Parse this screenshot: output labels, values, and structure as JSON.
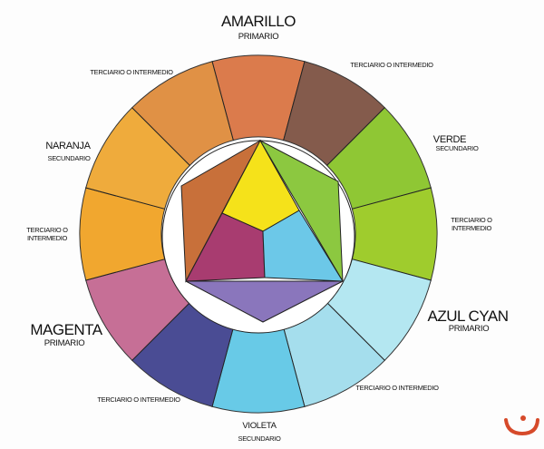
{
  "labels": {
    "amarillo": {
      "name": "AMARILLO",
      "type": "PRIMARIO"
    },
    "verde": {
      "name": "VERDE",
      "type": "SECUNDARIO"
    },
    "azul_cyan": {
      "name": "AZUL CYAN",
      "type": "PRIMARIO"
    },
    "violeta": {
      "name": "VIOLETA",
      "type": "SECUNDARIO"
    },
    "magenta": {
      "name": "MAGENTA",
      "type": "PRIMARIO"
    },
    "naranja": {
      "name": "NARANJA",
      "type": "SECUNDARIO"
    },
    "terciario_top_left": "TERCIARIO O INTERMEDIO",
    "terciario_top_right": "TERCIARIO O INTERMEDIO",
    "terciario_right_line1": "TERCIARIO O",
    "terciario_right_line2": "INTERMEDIO",
    "terciario_bottom_right": "TERCIARIO O INTERMEDIO",
    "terciario_bottom_left": "TERCIARIO O INTERMEDIO",
    "terciario_left_line1": "TERCIARIO O",
    "terciario_left_line2": "INTERMEDIO"
  },
  "wheel_segment_colors": [
    "#d9703e",
    "#7a4e3e",
    "#86c323",
    "#98c81c",
    "#aee6f0",
    "#9edcec",
    "#5cc6e6",
    "#3b3e8c",
    "#c2648e",
    "#f0a01e",
    "#eea52c",
    "#de8836"
  ],
  "inner_colors": {
    "orange": "#c8703a",
    "green": "#8cc840",
    "purple": "#8a76bc",
    "yellow": "#f5e21a",
    "magenta": "#a83c70",
    "cyan": "#6cc8e8"
  },
  "logo_color": "#d64a2a"
}
